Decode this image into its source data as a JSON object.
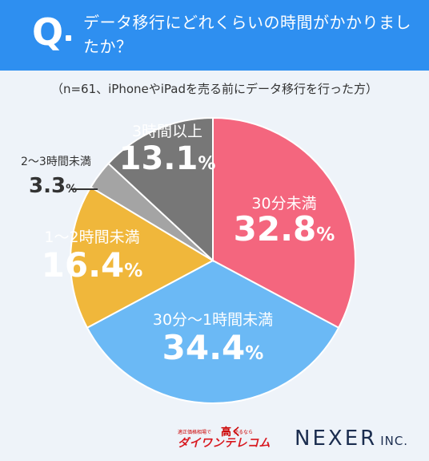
{
  "header": {
    "q_mark": "Q",
    "question": "データ移行にどれくらいの時間がかかりましたか？"
  },
  "subtitle": "（n=61、iPhoneやiPadを売る前にデータ移行を行った方）",
  "chart_data": {
    "type": "pie",
    "start": "12 o'clock, clockwise",
    "slices": [
      {
        "label": "30分未満",
        "value": 32.8,
        "color": "#f4667e",
        "text_color": "#ffffff"
      },
      {
        "label": "30分～1時間未満",
        "value": 34.4,
        "color": "#6bb9f5",
        "text_color": "#ffffff"
      },
      {
        "label": "1～2時間未満",
        "value": 16.4,
        "color": "#f0b73b",
        "text_color": "#ffffff"
      },
      {
        "label": "2～3時間未満",
        "value": 3.3,
        "color": "#a4a4a4",
        "text_color": "#333333"
      },
      {
        "label": "3時間以上",
        "value": 13.1,
        "color": "#777777",
        "text_color": "#ffffff"
      }
    ],
    "value_suffix": "%"
  },
  "logos": {
    "left_small": "適正価格相場で",
    "left_mid": "高く",
    "left_small2": "売るなら",
    "left_big": "ダイワンテレコム",
    "right": "NEXER",
    "right_suffix": "INC."
  }
}
